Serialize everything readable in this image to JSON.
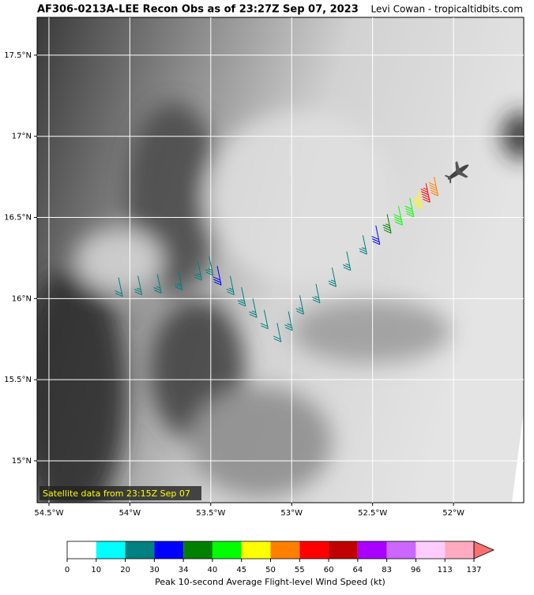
{
  "chart_data": {
    "type": "wind-barb-map",
    "title": "AF306-0213A-LEE Recon Obs as of 23:27Z Sep 07, 2023",
    "credit": "Levi Cowan - tropicaltidbits.com",
    "annotation": "Satellite data from 23:15Z Sep 07",
    "xlim": [
      -54.573,
      -51.566
    ],
    "ylim": [
      14.742,
      17.733
    ],
    "xticks": [
      {
        "value": -54.5,
        "label": "54.5°W"
      },
      {
        "value": -54,
        "label": "54°W"
      },
      {
        "value": -53.5,
        "label": "53.5°W"
      },
      {
        "value": -53,
        "label": "53°W"
      },
      {
        "value": -52.5,
        "label": "52.5°W"
      },
      {
        "value": -52,
        "label": "52°W"
      }
    ],
    "yticks": [
      {
        "value": 15,
        "label": "15°N"
      },
      {
        "value": 15.5,
        "label": "15.5°N"
      },
      {
        "value": 16,
        "label": "16°N"
      },
      {
        "value": 16.5,
        "label": "16.5°N"
      },
      {
        "value": 17,
        "label": "17°N"
      },
      {
        "value": 17.5,
        "label": "17.5°N"
      }
    ],
    "grid": true,
    "track": {
      "lon": [
        -54.07,
        -53.95,
        -53.83,
        -53.7,
        -53.58,
        -53.51,
        -53.46,
        -53.38,
        -53.31,
        -53.24,
        -53.17,
        -53.09,
        -53.02,
        -52.95,
        -52.85,
        -52.75,
        -52.66,
        -52.56,
        -52.48,
        -52.41,
        -52.34,
        -52.27,
        -52.22,
        -52.17,
        -52.12
      ],
      "lat": [
        16.13,
        16.14,
        16.15,
        16.17,
        16.23,
        16.26,
        16.2,
        16.14,
        16.07,
        16.0,
        15.93,
        15.85,
        15.92,
        16.02,
        16.09,
        16.19,
        16.29,
        16.39,
        16.45,
        16.52,
        16.57,
        16.62,
        16.67,
        16.71,
        16.75
      ],
      "speed": [
        24,
        25,
        25,
        26,
        27,
        26,
        32,
        27,
        26,
        25,
        24,
        24,
        25,
        26,
        27,
        27,
        28,
        29,
        32,
        36,
        42,
        44,
        47,
        58,
        52
      ]
    },
    "colorbar": {
      "label": "Peak 10-second Average Flight-level Wind Speed (kt)",
      "bounds": [
        0,
        10,
        20,
        30,
        34,
        40,
        45,
        50,
        55,
        60,
        64,
        83,
        96,
        113,
        137
      ],
      "colors": [
        "#ffffff",
        "#00ffff",
        "#008080",
        "#0000ff",
        "#008000",
        "#00ff00",
        "#ffff00",
        "#ff8000",
        "#ff0000",
        "#c00000",
        "#aa00ff",
        "#cc66ff",
        "#ffccff",
        "#ffaac0"
      ],
      "extend_color": "#f87070"
    }
  }
}
